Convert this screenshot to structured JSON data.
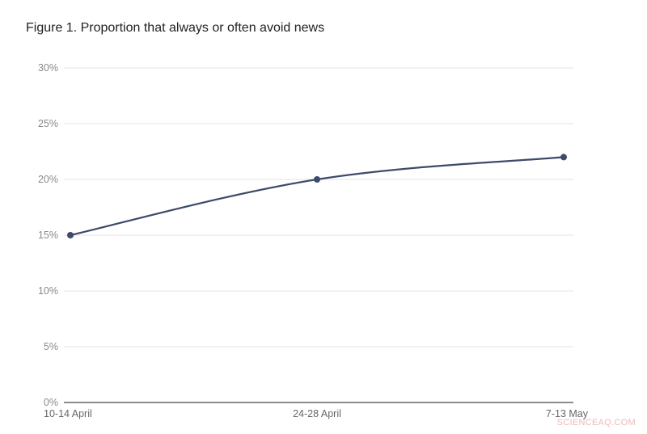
{
  "chart_data": {
    "type": "line",
    "title": "Figure 1. Proportion that always or often avoid news",
    "xlabel": "",
    "ylabel": "",
    "categories": [
      "10-14 April",
      "24-28 April",
      "7-13 May"
    ],
    "series": [
      {
        "name": "Proportion that always or often avoid news",
        "values": [
          15,
          20,
          22
        ],
        "color": "#3d4a6b"
      }
    ],
    "ylim": [
      0,
      30
    ],
    "yticks": [
      "0%",
      "5%",
      "10%",
      "15%",
      "20%",
      "25%",
      "30%"
    ],
    "grid": true,
    "legend": "none"
  },
  "watermark": "SCIENCEAQ.COM"
}
